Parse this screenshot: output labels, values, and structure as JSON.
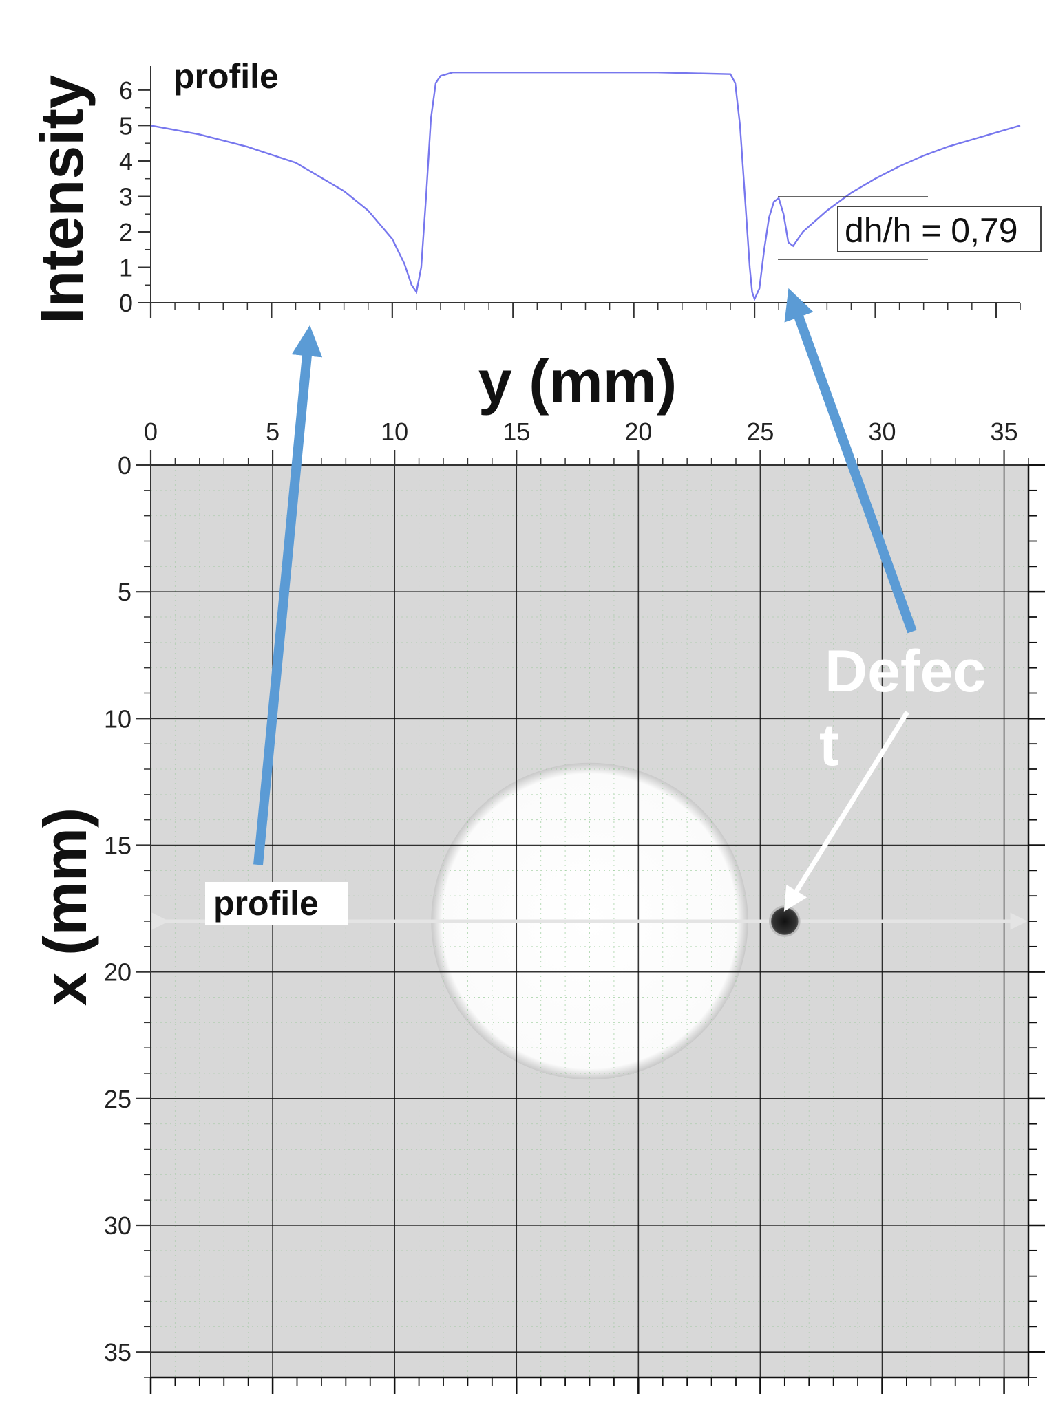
{
  "chart_data": [
    {
      "type": "line",
      "ylabel": "Intensity",
      "panel_label": "profile",
      "line_color": "#7777ee",
      "yticks": [
        0,
        1,
        2,
        3,
        4,
        5,
        6
      ],
      "ylim": [
        0,
        6.6
      ],
      "xlim": [
        0,
        36
      ],
      "annotation": "dh/h = 0,79",
      "x": [
        0,
        2,
        4,
        6,
        7,
        8,
        9,
        10,
        10.5,
        10.8,
        11,
        11.2,
        11.4,
        11.6,
        11.8,
        12,
        12.5,
        13,
        15,
        18,
        21,
        24,
        24.2,
        24.4,
        24.6,
        24.8,
        24.9,
        25,
        25.2,
        25.4,
        25.6,
        25.8,
        26,
        26.2,
        26.4,
        26.6,
        27,
        28,
        29,
        30,
        31,
        32,
        33,
        34,
        35,
        36
      ],
      "y": [
        5.0,
        4.75,
        4.4,
        3.95,
        3.55,
        3.15,
        2.6,
        1.8,
        1.1,
        0.5,
        0.3,
        1.0,
        3.0,
        5.2,
        6.2,
        6.4,
        6.5,
        6.5,
        6.5,
        6.5,
        6.5,
        6.45,
        6.2,
        5.0,
        3.0,
        1.0,
        0.3,
        0.1,
        0.4,
        1.5,
        2.4,
        2.85,
        2.95,
        2.5,
        1.7,
        1.6,
        2.0,
        2.6,
        3.1,
        3.5,
        3.85,
        4.15,
        4.4,
        4.6,
        4.8,
        5.0
      ]
    },
    {
      "type": "heatmap",
      "xlabel": "y (mm)",
      "ylabel": "x (mm)",
      "xticks": [
        0,
        5,
        10,
        15,
        20,
        25,
        30,
        35
      ],
      "yticks": [
        0,
        5,
        10,
        15,
        20,
        25,
        30,
        35
      ],
      "xlim": [
        0,
        36
      ],
      "ylim": [
        0,
        36
      ],
      "circle": {
        "center_y_mm": 18,
        "center_x_mm": 18,
        "radius_mm": 6.5
      },
      "profile_line": {
        "x_mm": 18,
        "y_range_mm": [
          0,
          36
        ],
        "label": "profile"
      },
      "defect": {
        "y_mm": 26,
        "x_mm": 18,
        "radius_mm": 0.6,
        "label_line1": "Defec",
        "label_line2": "t"
      },
      "arrow_color": "#5b9bd5"
    }
  ]
}
